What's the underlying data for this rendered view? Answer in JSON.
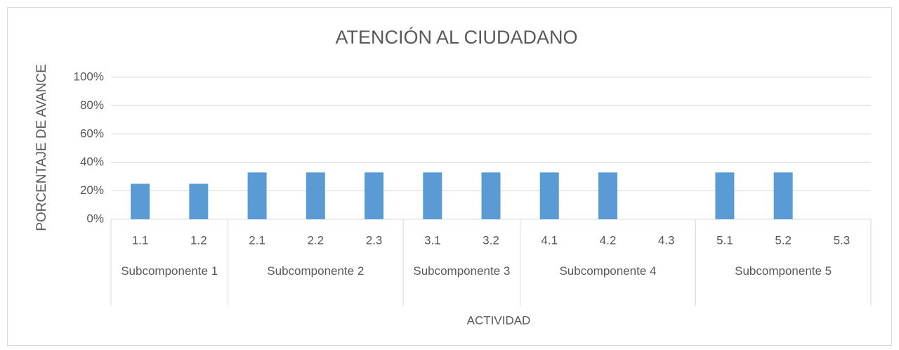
{
  "chart_data": {
    "type": "bar",
    "title": "ATENCIÓN AL CIUDADANO",
    "y_label": "PORCENTAJE DE AVANCE",
    "x_label": "ACTIVIDAD",
    "categories": [
      "1.1",
      "1.2",
      "2.1",
      "2.2",
      "2.3",
      "3.1",
      "3.2",
      "4.1",
      "4.2",
      "4.3",
      "5.1",
      "5.2",
      "5.3"
    ],
    "category_groups": [
      {
        "label": "Subcomponente 1",
        "span": 2
      },
      {
        "label": "Subcomponente 2",
        "span": 3
      },
      {
        "label": "Subcomponente 3",
        "span": 2
      },
      {
        "label": "Subcomponente 4",
        "span": 3
      },
      {
        "label": "Subcomponente 5",
        "span": 3
      }
    ],
    "values": [
      25,
      25,
      33,
      33,
      33,
      33,
      33,
      33,
      33,
      0,
      33,
      33,
      0
    ],
    "color": "#5b9bd5",
    "ylim": [
      0,
      100
    ],
    "yticks": [
      {
        "value": 0,
        "label": "0%"
      },
      {
        "value": 20,
        "label": "20%"
      },
      {
        "value": 40,
        "label": "40%"
      },
      {
        "value": 60,
        "label": "60%"
      },
      {
        "value": 80,
        "label": "80%"
      },
      {
        "value": 100,
        "label": "100%"
      }
    ],
    "grid": true
  }
}
